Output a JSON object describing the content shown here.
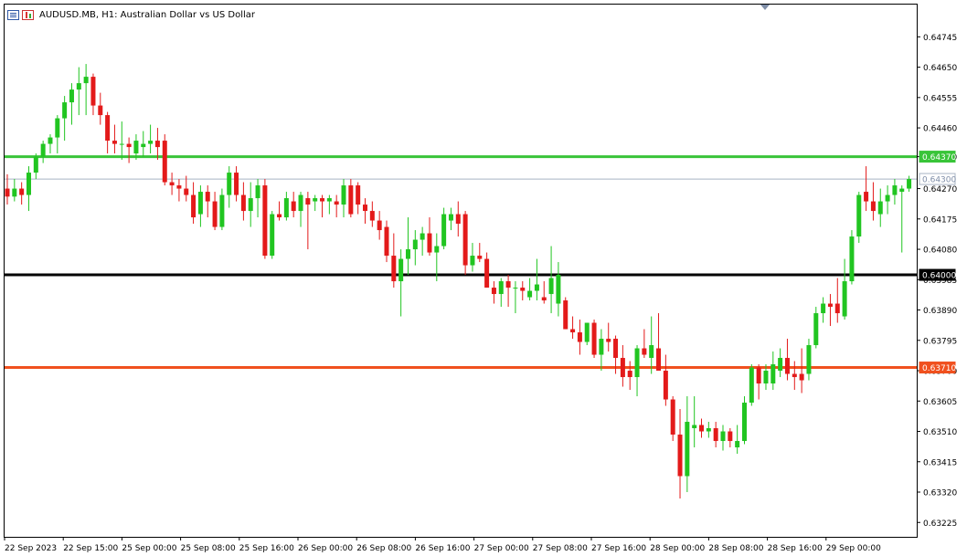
{
  "header": {
    "symbol_line": "AUDUSD.MB, H1:  Australian Dollar vs US Dollar"
  },
  "colors": {
    "bull": "#21c521",
    "bear": "#e31a1a",
    "green_line": "#39c439",
    "black_line": "#000000",
    "orange_line": "#f0501e",
    "current_price_line": "#a8b4c4",
    "axis_text": "#000000"
  },
  "chart_data": {
    "type": "candlestick",
    "timeframe": "H1",
    "ylim": [
      0.6318,
      0.64846
    ],
    "y_ticks": [
      "0.64745",
      "0.64650",
      "0.64555",
      "0.64460",
      "0.64370",
      "0.64270",
      "0.64175",
      "0.64080",
      "0.63985",
      "0.63890",
      "0.63795",
      "0.63700",
      "0.63605",
      "0.63510",
      "0.63415",
      "0.63320",
      "0.63225"
    ],
    "x_ticks": [
      "22 Sep 2023",
      "22 Sep 15:00",
      "25 Sep 00:00",
      "25 Sep 08:00",
      "25 Sep 16:00",
      "26 Sep 00:00",
      "26 Sep 08:00",
      "26 Sep 16:00",
      "27 Sep 00:00",
      "27 Sep 08:00",
      "27 Sep 16:00",
      "28 Sep 00:00",
      "28 Sep 08:00",
      "28 Sep 16:00",
      "29 Sep 00:00"
    ],
    "horizontal_lines": [
      {
        "name": "green",
        "price": 0.6437,
        "label": "0.64370",
        "color": "#39c439"
      },
      {
        "name": "black",
        "price": 0.64,
        "label": "0.64000",
        "color": "#000000"
      },
      {
        "name": "orange",
        "price": 0.6371,
        "label": "0.63710",
        "color": "#f0501e"
      }
    ],
    "current_price": {
      "price": 0.643,
      "label": "0.64300"
    },
    "candles": [
      [
        0.6427,
        0.64315,
        0.6422,
        0.64245
      ],
      [
        0.64245,
        0.643,
        0.6423,
        0.6427
      ],
      [
        0.6427,
        0.6429,
        0.6422,
        0.6425
      ],
      [
        0.6425,
        0.6434,
        0.642,
        0.6432
      ],
      [
        0.6432,
        0.6438,
        0.643,
        0.6437
      ],
      [
        0.6437,
        0.6442,
        0.6435,
        0.6441
      ],
      [
        0.6441,
        0.6444,
        0.6438,
        0.6443
      ],
      [
        0.6443,
        0.645,
        0.6438,
        0.6449
      ],
      [
        0.6449,
        0.6456,
        0.6442,
        0.6454
      ],
      [
        0.6454,
        0.646,
        0.6447,
        0.6458
      ],
      [
        0.6458,
        0.6465,
        0.645,
        0.646
      ],
      [
        0.646,
        0.6466,
        0.645,
        0.6462
      ],
      [
        0.6462,
        0.6463,
        0.645,
        0.6453
      ],
      [
        0.6453,
        0.6457,
        0.6447,
        0.645
      ],
      [
        0.645,
        0.6451,
        0.6438,
        0.6442
      ],
      [
        0.6442,
        0.6447,
        0.6438,
        0.6441
      ],
      [
        0.6441,
        0.6448,
        0.6436,
        0.6441
      ],
      [
        0.6441,
        0.6443,
        0.6435,
        0.644
      ],
      [
        0.6438,
        0.6444,
        0.6436,
        0.6442
      ],
      [
        0.644,
        0.6445,
        0.6437,
        0.6441
      ],
      [
        0.6441,
        0.6447,
        0.6438,
        0.6442
      ],
      [
        0.6442,
        0.6446,
        0.6436,
        0.644
      ],
      [
        0.6442,
        0.6444,
        0.6428,
        0.6429
      ],
      [
        0.6429,
        0.6432,
        0.6425,
        0.6428
      ],
      [
        0.6428,
        0.643,
        0.6423,
        0.6427
      ],
      [
        0.6427,
        0.6431,
        0.6423,
        0.6425
      ],
      [
        0.6425,
        0.6429,
        0.6416,
        0.6418
      ],
      [
        0.6419,
        0.6428,
        0.6415,
        0.6426
      ],
      [
        0.6426,
        0.6428,
        0.6418,
        0.6423
      ],
      [
        0.6423,
        0.6426,
        0.6414,
        0.6415
      ],
      [
        0.6415,
        0.6427,
        0.6414,
        0.6425
      ],
      [
        0.6425,
        0.6434,
        0.6421,
        0.6432
      ],
      [
        0.6432,
        0.6434,
        0.6423,
        0.6425
      ],
      [
        0.6425,
        0.6429,
        0.6417,
        0.642
      ],
      [
        0.642,
        0.6429,
        0.6415,
        0.6424
      ],
      [
        0.6424,
        0.643,
        0.6418,
        0.6428
      ],
      [
        0.6428,
        0.643,
        0.6405,
        0.6406
      ],
      [
        0.6406,
        0.642,
        0.6405,
        0.6419
      ],
      [
        0.6419,
        0.6423,
        0.6417,
        0.6418
      ],
      [
        0.6418,
        0.6426,
        0.6417,
        0.6424
      ],
      [
        0.6423,
        0.6426,
        0.6418,
        0.642
      ],
      [
        0.642,
        0.6426,
        0.6415,
        0.6425
      ],
      [
        0.6424,
        0.6426,
        0.6408,
        0.6422
      ],
      [
        0.6423,
        0.6425,
        0.642,
        0.6424
      ],
      [
        0.6424,
        0.6425,
        0.6418,
        0.6423
      ],
      [
        0.6423,
        0.6425,
        0.6419,
        0.6424
      ],
      [
        0.6423,
        0.6425,
        0.6418,
        0.6422
      ],
      [
        0.6422,
        0.643,
        0.6418,
        0.6428
      ],
      [
        0.6428,
        0.643,
        0.6418,
        0.6419
      ],
      [
        0.6428,
        0.6429,
        0.6419,
        0.6422
      ],
      [
        0.6422,
        0.6424,
        0.6416,
        0.642
      ],
      [
        0.642,
        0.6423,
        0.6415,
        0.6417
      ],
      [
        0.6417,
        0.642,
        0.6411,
        0.6414
      ],
      [
        0.6415,
        0.6417,
        0.6404,
        0.6406
      ],
      [
        0.6406,
        0.6413,
        0.6396,
        0.6398
      ],
      [
        0.6398,
        0.6408,
        0.6387,
        0.6405
      ],
      [
        0.6405,
        0.6418,
        0.64,
        0.6408
      ],
      [
        0.6408,
        0.6414,
        0.6403,
        0.6411
      ],
      [
        0.6411,
        0.6415,
        0.6406,
        0.6413
      ],
      [
        0.6413,
        0.6418,
        0.6406,
        0.6407
      ],
      [
        0.6407,
        0.6413,
        0.6398,
        0.6409
      ],
      [
        0.6409,
        0.6421,
        0.6408,
        0.6419
      ],
      [
        0.6417,
        0.6421,
        0.6414,
        0.6419
      ],
      [
        0.6419,
        0.6423,
        0.6412,
        0.6416
      ],
      [
        0.6419,
        0.642,
        0.64,
        0.6403
      ],
      [
        0.6403,
        0.641,
        0.6401,
        0.6406
      ],
      [
        0.6406,
        0.641,
        0.6404,
        0.6405
      ],
      [
        0.6405,
        0.6407,
        0.6396,
        0.6396
      ],
      [
        0.6396,
        0.6398,
        0.6391,
        0.6394
      ],
      [
        0.6394,
        0.6399,
        0.639,
        0.6398
      ],
      [
        0.6398,
        0.64,
        0.639,
        0.6396
      ],
      [
        0.6396,
        0.6398,
        0.6388,
        0.6396
      ],
      [
        0.6396,
        0.6398,
        0.6392,
        0.6395
      ],
      [
        0.6393,
        0.6399,
        0.6392,
        0.6395
      ],
      [
        0.6395,
        0.6405,
        0.6392,
        0.6397
      ],
      [
        0.6393,
        0.6398,
        0.6391,
        0.6392
      ],
      [
        0.6394,
        0.6409,
        0.6388,
        0.6399
      ],
      [
        0.6391,
        0.6404,
        0.6387,
        0.64
      ],
      [
        0.6392,
        0.6393,
        0.6383,
        0.6383
      ],
      [
        0.6383,
        0.6387,
        0.638,
        0.6382
      ],
      [
        0.6382,
        0.6386,
        0.6375,
        0.6379
      ],
      [
        0.6379,
        0.6385,
        0.6378,
        0.6385
      ],
      [
        0.6385,
        0.6386,
        0.6374,
        0.6375
      ],
      [
        0.6375,
        0.6383,
        0.637,
        0.638
      ],
      [
        0.638,
        0.6385,
        0.6376,
        0.6379
      ],
      [
        0.638,
        0.6381,
        0.6369,
        0.6374
      ],
      [
        0.6374,
        0.6378,
        0.6365,
        0.6368
      ],
      [
        0.637,
        0.6373,
        0.6364,
        0.6368
      ],
      [
        0.6368,
        0.6378,
        0.6362,
        0.6377
      ],
      [
        0.6377,
        0.6383,
        0.6374,
        0.6375
      ],
      [
        0.6374,
        0.6387,
        0.6369,
        0.6378
      ],
      [
        0.6377,
        0.6388,
        0.6371,
        0.637
      ],
      [
        0.637,
        0.6375,
        0.6359,
        0.6361
      ],
      [
        0.6361,
        0.6362,
        0.6348,
        0.635
      ],
      [
        0.635,
        0.6358,
        0.633,
        0.6337
      ],
      [
        0.6337,
        0.6362,
        0.6332,
        0.6354
      ],
      [
        0.6352,
        0.6362,
        0.6346,
        0.6353
      ],
      [
        0.6353,
        0.6355,
        0.6349,
        0.6351
      ],
      [
        0.6351,
        0.6354,
        0.6349,
        0.6352
      ],
      [
        0.6352,
        0.6354,
        0.6346,
        0.6348
      ],
      [
        0.6348,
        0.6353,
        0.6345,
        0.6351
      ],
      [
        0.6351,
        0.6352,
        0.6346,
        0.6348
      ],
      [
        0.6346,
        0.6353,
        0.6344,
        0.6348
      ],
      [
        0.6348,
        0.6362,
        0.6347,
        0.636
      ],
      [
        0.636,
        0.6372,
        0.6359,
        0.6371
      ],
      [
        0.6371,
        0.6372,
        0.6361,
        0.6366
      ],
      [
        0.6366,
        0.6372,
        0.6364,
        0.637
      ],
      [
        0.6366,
        0.6376,
        0.6364,
        0.6372
      ],
      [
        0.637,
        0.6377,
        0.6368,
        0.6374
      ],
      [
        0.6374,
        0.638,
        0.6367,
        0.6369
      ],
      [
        0.6369,
        0.6373,
        0.6364,
        0.6368
      ],
      [
        0.6369,
        0.6377,
        0.6363,
        0.6367
      ],
      [
        0.6369,
        0.638,
        0.6367,
        0.6378
      ],
      [
        0.6378,
        0.639,
        0.6377,
        0.6388
      ],
      [
        0.6388,
        0.6393,
        0.6385,
        0.6391
      ],
      [
        0.6391,
        0.6394,
        0.6384,
        0.639
      ],
      [
        0.6391,
        0.6399,
        0.6385,
        0.6388
      ],
      [
        0.6387,
        0.6405,
        0.6386,
        0.6398
      ],
      [
        0.6398,
        0.6414,
        0.6397,
        0.6412
      ],
      [
        0.6412,
        0.6426,
        0.641,
        0.6425
      ],
      [
        0.6426,
        0.6434,
        0.642,
        0.6423
      ],
      [
        0.6423,
        0.6429,
        0.6417,
        0.642
      ],
      [
        0.6419,
        0.6427,
        0.6415,
        0.6423
      ],
      [
        0.6423,
        0.6428,
        0.6419,
        0.6425
      ],
      [
        0.6425,
        0.643,
        0.6422,
        0.6428
      ],
      [
        0.6426,
        0.6428,
        0.6407,
        0.6427
      ],
      [
        0.6427,
        0.6431,
        0.6426,
        0.643
      ]
    ]
  }
}
